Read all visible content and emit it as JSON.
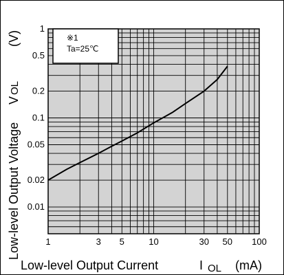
{
  "chart_data": {
    "type": "line",
    "x_scale": "log",
    "y_scale": "log",
    "xlim": [
      1,
      100
    ],
    "ylim": [
      0.005,
      1
    ],
    "grid": true,
    "x_ticks": [
      {
        "value": 1,
        "label": "1"
      },
      {
        "value": 3,
        "label": "3"
      },
      {
        "value": 5,
        "label": "5"
      },
      {
        "value": 10,
        "label": "10"
      },
      {
        "value": 30,
        "label": "30"
      },
      {
        "value": 50,
        "label": "50"
      },
      {
        "value": 100,
        "label": "100"
      }
    ],
    "y_ticks": [
      {
        "value": 1,
        "label": "1"
      },
      {
        "value": 0.5,
        "label": "0.5"
      },
      {
        "value": 0.2,
        "label": "0.2"
      },
      {
        "value": 0.1,
        "label": "0.1"
      },
      {
        "value": 0.05,
        "label": "0.05"
      },
      {
        "value": 0.02,
        "label": "0.02"
      },
      {
        "value": 0.01,
        "label": "0.01"
      }
    ],
    "xlabel": "Low-level Output Current",
    "xlabel_symbol": "I",
    "xlabel_subscript": "OL",
    "xlabel_unit": "(mA)",
    "ylabel": "Low-level Output Voltage",
    "ylabel_symbol": "V",
    "ylabel_subscript": "OL",
    "ylabel_unit": "(V)",
    "annotation": {
      "line1": "※1",
      "line2": "Ta=25℃"
    },
    "series": [
      {
        "x": [
          1,
          1.5,
          2,
          3,
          4,
          5,
          7,
          10,
          15,
          20,
          30,
          40,
          50
        ],
        "y": [
          0.02,
          0.0265,
          0.0315,
          0.04,
          0.048,
          0.055,
          0.068,
          0.088,
          0.115,
          0.145,
          0.2,
          0.27,
          0.38
        ]
      }
    ]
  },
  "colors": {
    "plot_background": "#d3d3d3",
    "grid": "#000000",
    "line": "#000000"
  }
}
